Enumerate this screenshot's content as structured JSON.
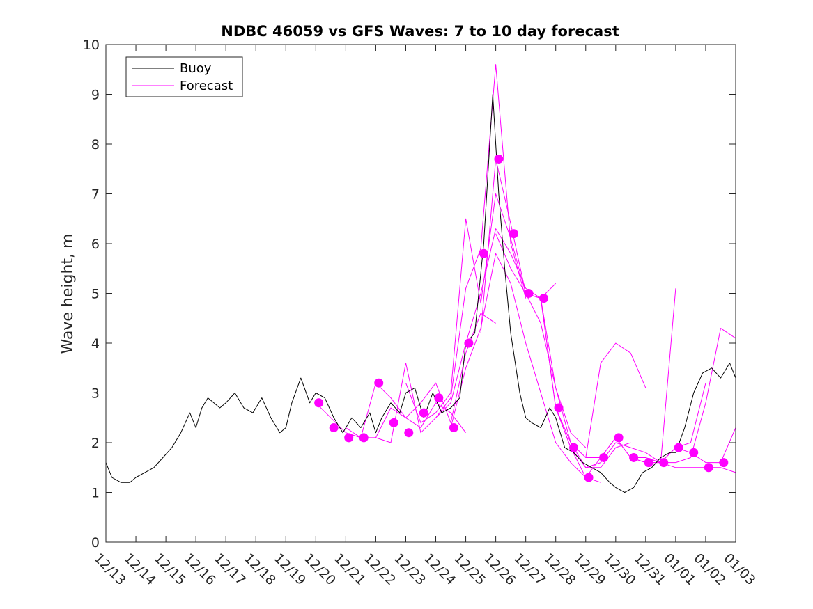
{
  "chart_data": {
    "type": "line",
    "title": "NDBC 46059 vs GFS Waves: 7 to 10 day forecast",
    "xlabel": "",
    "ylabel": "Wave height, m",
    "xlim": [
      0,
      21
    ],
    "ylim": [
      0,
      10
    ],
    "x_ticks": [
      0,
      1,
      2,
      3,
      4,
      5,
      6,
      7,
      8,
      9,
      10,
      11,
      12,
      13,
      14,
      15,
      16,
      17,
      18,
      19,
      20,
      21
    ],
    "x_tick_labels": [
      "12/13",
      "12/14",
      "12/15",
      "12/16",
      "12/17",
      "12/18",
      "12/19",
      "12/20",
      "12/21",
      "12/22",
      "12/23",
      "12/24",
      "12/25",
      "12/26",
      "12/27",
      "12/28",
      "12/29",
      "12/30",
      "12/31",
      "01/01",
      "01/02",
      "01/03"
    ],
    "y_ticks": [
      0,
      1,
      2,
      3,
      4,
      5,
      6,
      7,
      8,
      9,
      10
    ],
    "legend": [
      {
        "label": "Buoy",
        "color": "#000000"
      },
      {
        "label": "Forecast",
        "color": "#ff00ff"
      }
    ],
    "legend_position": "top-left",
    "series": [
      {
        "name": "Buoy",
        "color": "#000000",
        "x": [
          0,
          0.2,
          0.5,
          0.8,
          1.0,
          1.3,
          1.6,
          1.9,
          2.2,
          2.5,
          2.8,
          3.0,
          3.2,
          3.4,
          3.6,
          3.8,
          4.0,
          4.3,
          4.6,
          4.9,
          5.2,
          5.5,
          5.8,
          6.0,
          6.2,
          6.5,
          6.8,
          7.0,
          7.3,
          7.6,
          7.9,
          8.2,
          8.5,
          8.8,
          9.0,
          9.2,
          9.5,
          9.8,
          10.0,
          10.3,
          10.6,
          10.9,
          11.2,
          11.5,
          11.8,
          12.0,
          12.3,
          12.6,
          12.9,
          13.1,
          13.3,
          13.5,
          13.8,
          14.0,
          14.2,
          14.5,
          14.8,
          15.0,
          15.3,
          15.6,
          15.9,
          16.2,
          16.5,
          16.8,
          17.0,
          17.3,
          17.6,
          17.9,
          18.2,
          18.5,
          18.8,
          19.0,
          19.3,
          19.6,
          19.9,
          20.2,
          20.5,
          20.8,
          21.0
        ],
        "values": [
          1.6,
          1.3,
          1.2,
          1.2,
          1.3,
          1.4,
          1.5,
          1.7,
          1.9,
          2.2,
          2.6,
          2.3,
          2.7,
          2.9,
          2.8,
          2.7,
          2.8,
          3.0,
          2.7,
          2.6,
          2.9,
          2.5,
          2.2,
          2.3,
          2.8,
          3.3,
          2.8,
          3.0,
          2.9,
          2.5,
          2.2,
          2.5,
          2.3,
          2.6,
          2.2,
          2.5,
          2.8,
          2.6,
          3.0,
          3.1,
          2.5,
          3.0,
          2.6,
          2.7,
          2.9,
          4.0,
          4.2,
          6.0,
          9.0,
          7.0,
          5.5,
          4.2,
          3.0,
          2.5,
          2.4,
          2.3,
          2.7,
          2.5,
          1.9,
          1.8,
          1.6,
          1.5,
          1.4,
          1.2,
          1.1,
          1.0,
          1.1,
          1.4,
          1.5,
          1.7,
          1.8,
          1.8,
          2.3,
          3.0,
          3.4,
          3.5,
          3.3,
          3.6,
          3.3
        ]
      },
      {
        "name": "Forecast",
        "color": "#ff00ff",
        "x": [
          7.0,
          7.5,
          8.0,
          8.5,
          9.0,
          9.5,
          10.0,
          10.5,
          11.0,
          11.5,
          12.0
        ],
        "values": [
          2.8,
          2.5,
          2.2,
          2.1,
          2.1,
          2.7,
          2.5,
          2.3,
          2.8,
          2.6,
          2.2
        ]
      },
      {
        "name": "Forecast",
        "color": "#ff00ff",
        "x": [
          8.0,
          8.5,
          9.0,
          9.5,
          10.0,
          10.5,
          11.0,
          11.5,
          12.0,
          12.5,
          13.0
        ],
        "values": [
          2.3,
          2.1,
          3.2,
          2.9,
          2.5,
          2.8,
          3.2,
          2.4,
          3.8,
          4.6,
          4.4
        ]
      },
      {
        "name": "Forecast",
        "color": "#ff00ff",
        "x": [
          9.0,
          9.5,
          10.0,
          10.5,
          11.0,
          11.5,
          12.0,
          12.5,
          13.0,
          13.5,
          14.0
        ],
        "values": [
          2.1,
          2.0,
          3.6,
          2.2,
          2.5,
          2.9,
          5.1,
          5.9,
          9.6,
          6.0,
          4.9
        ]
      },
      {
        "name": "Forecast",
        "color": "#ff00ff",
        "x": [
          10.0,
          10.5,
          11.0,
          11.5,
          12.0,
          12.5,
          13.0,
          13.5,
          14.0,
          14.5,
          15.0
        ],
        "values": [
          3.2,
          2.4,
          2.6,
          3.0,
          6.5,
          4.8,
          7.0,
          6.1,
          5.0,
          4.9,
          5.2
        ]
      },
      {
        "name": "Forecast",
        "color": "#ff00ff",
        "x": [
          11.0,
          11.5,
          12.0,
          12.5,
          13.0,
          13.5,
          14.0,
          14.5,
          15.0,
          15.5,
          16.0
        ],
        "values": [
          2.5,
          2.8,
          4.0,
          5.0,
          6.3,
          5.8,
          5.1,
          4.9,
          3.1,
          2.2,
          1.9
        ]
      },
      {
        "name": "Forecast",
        "color": "#ff00ff",
        "x": [
          11.5,
          12.0,
          12.5,
          13.0,
          13.5,
          14.0,
          14.5,
          15.0,
          15.5,
          16.0,
          16.5
        ],
        "values": [
          2.3,
          3.5,
          4.3,
          5.8,
          5.2,
          4.0,
          3.0,
          2.0,
          1.6,
          1.3,
          1.2
        ]
      },
      {
        "name": "Forecast",
        "color": "#ff00ff",
        "x": [
          12.5,
          13.0,
          13.5,
          14.0,
          14.5,
          15.0,
          15.5,
          16.0,
          16.5,
          17.0,
          17.5
        ],
        "values": [
          4.2,
          7.7,
          6.4,
          5.0,
          4.4,
          3.1,
          2.0,
          1.5,
          1.5,
          1.9,
          2.0
        ]
      },
      {
        "name": "Forecast",
        "color": "#ff00ff",
        "x": [
          13.0,
          13.5,
          14.0,
          14.5,
          15.0,
          15.5,
          16.0,
          16.5,
          17.0,
          17.5,
          18.0
        ],
        "values": [
          6.2,
          5.5,
          5.0,
          4.9,
          2.7,
          2.0,
          1.7,
          3.6,
          4.0,
          3.8,
          3.1
        ]
      },
      {
        "name": "Forecast",
        "color": "#ff00ff",
        "x": [
          14.0,
          14.5,
          15.0,
          15.5,
          16.0,
          16.5,
          17.0,
          17.5,
          18.0,
          18.5,
          19.0
        ],
        "values": [
          5.0,
          4.9,
          2.7,
          1.9,
          1.5,
          1.6,
          2.0,
          1.9,
          1.8,
          1.6,
          5.1
        ]
      },
      {
        "name": "Forecast",
        "color": "#ff00ff",
        "x": [
          15.0,
          15.5,
          16.0,
          16.5,
          17.0,
          17.5,
          18.0,
          18.5,
          19.0,
          19.5,
          20.0
        ],
        "values": [
          2.7,
          1.9,
          1.3,
          1.7,
          2.1,
          1.7,
          1.6,
          1.6,
          1.9,
          2.0,
          3.2
        ]
      },
      {
        "name": "Forecast",
        "color": "#ff00ff",
        "x": [
          16.0,
          16.5,
          17.0,
          17.5,
          18.0,
          18.5,
          19.0,
          19.5,
          20.0,
          20.5,
          21.0
        ],
        "values": [
          1.7,
          1.7,
          2.1,
          1.7,
          1.6,
          1.6,
          1.6,
          1.7,
          2.8,
          4.3,
          4.1
        ]
      },
      {
        "name": "Forecast",
        "color": "#ff00ff",
        "x": [
          17.5,
          18.0,
          18.5,
          19.0,
          19.5,
          20.0,
          20.5,
          21.0
        ],
        "values": [
          1.7,
          1.7,
          1.6,
          1.9,
          1.8,
          1.6,
          1.6,
          2.3
        ]
      },
      {
        "name": "Forecast",
        "color": "#ff00ff",
        "x": [
          18.5,
          19.0,
          19.5,
          20.0,
          20.5,
          21.0
        ],
        "values": [
          1.6,
          1.5,
          1.5,
          1.5,
          1.5,
          1.4
        ]
      }
    ],
    "markers": {
      "color": "#ff00ff",
      "x": [
        7.1,
        7.6,
        8.1,
        8.6,
        9.1,
        9.6,
        10.1,
        10.6,
        11.1,
        11.6,
        12.1,
        12.6,
        13.1,
        13.6,
        14.1,
        14.6,
        15.1,
        15.6,
        16.1,
        16.6,
        17.1,
        17.6,
        18.1,
        18.6,
        19.1,
        19.6,
        20.1,
        20.6
      ],
      "values": [
        2.8,
        2.3,
        2.1,
        2.1,
        3.2,
        2.4,
        2.2,
        2.6,
        2.9,
        2.3,
        4.0,
        5.8,
        7.7,
        6.2,
        5.0,
        4.9,
        2.7,
        1.9,
        1.3,
        1.7,
        2.1,
        1.7,
        1.6,
        1.6,
        1.9,
        1.8,
        1.5,
        1.6
      ]
    }
  }
}
